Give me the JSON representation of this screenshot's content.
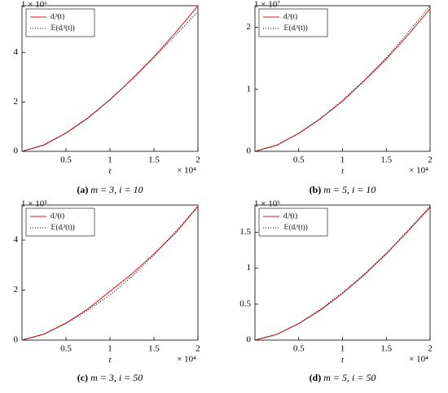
{
  "chart_data": [
    {
      "type": "line",
      "caption_label": "(a)",
      "caption": "m = 3, i = 10",
      "xlabel": "t",
      "x_exponent": "× 10⁴",
      "y_exponent": "1 × 10⁶",
      "x": [
        0,
        0.25,
        0.5,
        0.75,
        1,
        1.25,
        1.5,
        1.75,
        2
      ],
      "xlim": [
        0,
        2
      ],
      "xticks": [
        0.5,
        1,
        1.5,
        2
      ],
      "ylim": [
        0,
        5.9
      ],
      "yticks": [
        0,
        2,
        4
      ],
      "series": [
        {
          "name": "dᵢ³(t)",
          "color": "#e8101a",
          "style": "solid",
          "values": [
            0,
            0.26,
            0.74,
            1.35,
            2.09,
            2.92,
            3.83,
            4.83,
            5.9
          ]
        },
        {
          "name": "𝔼(dᵢ³(t))",
          "color": "#000000",
          "style": "dotted",
          "values": [
            0,
            0.26,
            0.74,
            1.36,
            2.1,
            2.92,
            3.8,
            4.72,
            5.65
          ]
        }
      ]
    },
    {
      "type": "line",
      "caption_label": "(b)",
      "caption": "m = 5, i = 10",
      "xlabel": "t",
      "x_exponent": "× 10⁴",
      "y_exponent": "1 × 10⁷",
      "x": [
        0,
        0.25,
        0.5,
        0.75,
        1,
        1.25,
        1.5,
        1.75,
        2
      ],
      "xlim": [
        0,
        2
      ],
      "xticks": [
        0.5,
        1,
        1.5,
        2
      ],
      "ylim": [
        0,
        2.35
      ],
      "yticks": [
        0,
        1,
        2
      ],
      "series": [
        {
          "name": "dᵢ³(t)",
          "color": "#e8101a",
          "style": "solid",
          "values": [
            0,
            0.1,
            0.29,
            0.53,
            0.81,
            1.14,
            1.49,
            1.88,
            2.3
          ]
        },
        {
          "name": "𝔼(dᵢ³(t))",
          "color": "#000000",
          "style": "dotted",
          "values": [
            0,
            0.1,
            0.29,
            0.53,
            0.82,
            1.15,
            1.51,
            1.92,
            2.35
          ]
        }
      ]
    },
    {
      "type": "line",
      "caption_label": "(c)",
      "caption": "m = 3, i = 50",
      "xlabel": "t",
      "x_exponent": "× 10⁴",
      "y_exponent": "1 × 10⁵",
      "x": [
        0,
        0.25,
        0.5,
        0.75,
        1,
        1.25,
        1.5,
        1.75,
        2
      ],
      "xlim": [
        0,
        2
      ],
      "xticks": [
        0.5,
        1,
        1.5,
        2
      ],
      "ylim": [
        0,
        5.4
      ],
      "yticks": [
        0,
        2,
        4
      ],
      "series": [
        {
          "name": "dᵢ³(t)",
          "color": "#e8101a",
          "style": "solid",
          "values": [
            0,
            0.24,
            0.68,
            1.25,
            1.95,
            2.65,
            3.45,
            4.3,
            5.35
          ]
        },
        {
          "name": "𝔼(dᵢ³(t))",
          "color": "#000000",
          "style": "dotted",
          "values": [
            0,
            0.24,
            0.66,
            1.2,
            1.8,
            2.55,
            3.4,
            4.35,
            5.35
          ]
        }
      ]
    },
    {
      "type": "line",
      "caption_label": "(d)",
      "caption": "m = 5, i = 50",
      "xlabel": "t",
      "x_exponent": "× 10⁴",
      "y_exponent": "1 × 10⁶",
      "x": [
        0,
        0.25,
        0.5,
        0.75,
        1,
        1.25,
        1.5,
        1.75,
        2
      ],
      "xlim": [
        0,
        2
      ],
      "xticks": [
        0.5,
        1,
        1.5,
        2
      ],
      "ylim": [
        0,
        1.88
      ],
      "yticks": [
        0,
        0.5,
        1,
        1.5
      ],
      "series": [
        {
          "name": "dᵢ³(t)",
          "color": "#e8101a",
          "style": "solid",
          "values": [
            0,
            0.08,
            0.23,
            0.42,
            0.65,
            0.91,
            1.2,
            1.52,
            1.85
          ]
        },
        {
          "name": "𝔼(dᵢ³(t))",
          "color": "#000000",
          "style": "dotted",
          "values": [
            0,
            0.08,
            0.23,
            0.43,
            0.66,
            0.92,
            1.21,
            1.53,
            1.86
          ]
        }
      ]
    }
  ]
}
